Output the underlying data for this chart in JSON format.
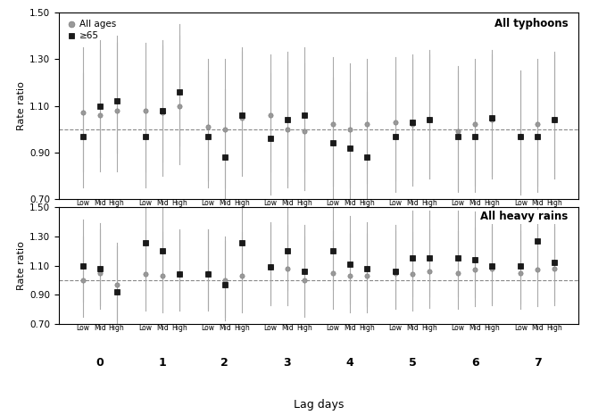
{
  "title1": "All typhoons",
  "title2": "All heavy rains",
  "xlabel": "Lag days",
  "ylabel": "Rate ratio",
  "ylim": [
    0.7,
    1.5
  ],
  "yticks": [
    0.7,
    0.9,
    1.1,
    1.3,
    1.5
  ],
  "ytick_labels": [
    "0.70",
    "0.90",
    "1.10",
    "1.30",
    "1.50"
  ],
  "reference_line": 1.0,
  "lag_days": [
    0,
    1,
    2,
    3,
    4,
    5,
    6,
    7
  ],
  "ses_levels": [
    "Low",
    "Mid",
    "High"
  ],
  "legend_circle": "All ages",
  "legend_square": "≥65",
  "typhoon_allages_center": [
    1.07,
    1.06,
    1.08,
    1.08,
    1.07,
    1.1,
    1.01,
    1.0,
    1.05,
    1.06,
    1.0,
    0.99,
    1.02,
    1.0,
    1.02,
    1.03,
    1.02,
    1.04,
    0.99,
    1.02,
    1.04,
    0.97,
    1.02,
    1.04
  ],
  "typhoon_allages_lo": [
    0.82,
    0.82,
    0.82,
    0.82,
    0.8,
    0.85,
    0.78,
    0.75,
    0.8,
    0.82,
    0.75,
    0.74,
    0.76,
    0.75,
    0.77,
    0.78,
    0.76,
    0.79,
    0.74,
    0.76,
    0.79,
    0.72,
    0.76,
    0.79
  ],
  "typhoon_allages_hi": [
    1.35,
    1.34,
    1.37,
    1.37,
    1.38,
    1.4,
    1.3,
    1.3,
    1.33,
    1.32,
    1.29,
    1.28,
    1.31,
    1.28,
    1.3,
    1.31,
    1.3,
    1.32,
    1.27,
    1.3,
    1.32,
    1.25,
    1.3,
    1.32
  ],
  "typhoon_65plus_center": [
    0.97,
    1.1,
    1.12,
    0.97,
    1.08,
    1.16,
    0.97,
    0.88,
    1.06,
    0.96,
    1.04,
    1.06,
    0.94,
    0.92,
    0.88,
    0.97,
    1.03,
    1.04,
    0.97,
    0.97,
    1.05,
    0.97,
    0.97,
    1.04
  ],
  "typhoon_65plus_lo": [
    0.75,
    0.88,
    0.9,
    0.75,
    0.86,
    0.93,
    0.75,
    0.65,
    0.83,
    0.72,
    0.8,
    0.82,
    0.7,
    0.68,
    0.64,
    0.73,
    0.78,
    0.79,
    0.73,
    0.73,
    0.8,
    0.73,
    0.73,
    0.79
  ],
  "typhoon_65plus_hi": [
    1.24,
    1.38,
    1.4,
    1.25,
    1.36,
    1.45,
    1.25,
    1.17,
    1.35,
    1.24,
    1.33,
    1.35,
    1.22,
    1.2,
    1.16,
    1.25,
    1.32,
    1.34,
    1.25,
    1.25,
    1.34,
    1.25,
    1.25,
    1.33
  ],
  "rain_allages_center": [
    1.0,
    1.05,
    0.97,
    1.04,
    1.03,
    1.04,
    1.05,
    1.0,
    1.03,
    1.09,
    1.08,
    1.0,
    1.05,
    1.03,
    1.03,
    1.05,
    1.04,
    1.06,
    1.05,
    1.07,
    1.08,
    1.05,
    1.07,
    1.08
  ],
  "rain_allages_lo": [
    0.75,
    0.8,
    0.72,
    0.79,
    0.78,
    0.79,
    0.8,
    0.75,
    0.78,
    0.84,
    0.83,
    0.75,
    0.8,
    0.78,
    0.78,
    0.8,
    0.79,
    0.81,
    0.8,
    0.82,
    0.83,
    0.8,
    0.82,
    0.83
  ],
  "rain_allages_hi": [
    1.3,
    1.35,
    1.26,
    1.34,
    1.33,
    1.34,
    1.35,
    1.3,
    1.33,
    1.38,
    1.38,
    1.3,
    1.34,
    1.32,
    1.32,
    1.34,
    1.33,
    1.35,
    1.34,
    1.36,
    1.37,
    1.34,
    1.36,
    1.37
  ],
  "rain_65plus_center": [
    1.1,
    1.08,
    0.92,
    1.26,
    1.2,
    1.04,
    1.04,
    0.97,
    1.26,
    1.09,
    1.2,
    1.06,
    1.2,
    1.11,
    1.08,
    1.06,
    1.15,
    1.15,
    1.15,
    1.14,
    1.1,
    1.1,
    1.27,
    1.12
  ],
  "rain_65plus_lo": [
    0.85,
    0.83,
    0.67,
    1.0,
    0.95,
    0.79,
    0.79,
    0.72,
    1.0,
    0.83,
    0.93,
    0.8,
    0.94,
    0.84,
    0.82,
    0.8,
    0.89,
    0.89,
    0.89,
    0.88,
    0.84,
    0.84,
    1.01,
    0.86
  ],
  "rain_65plus_hi": [
    1.42,
    1.39,
    1.23,
    1.59,
    1.51,
    1.35,
    1.35,
    1.27,
    1.59,
    1.4,
    1.54,
    1.38,
    1.53,
    1.44,
    1.4,
    1.38,
    1.48,
    1.48,
    1.48,
    1.47,
    1.42,
    1.43,
    1.6,
    1.44
  ],
  "circle_color": "#999999",
  "square_color": "#1a1a1a",
  "errorbar_color": "#aaaaaa",
  "dashed_line_color": "#888888",
  "background_color": "#ffffff"
}
